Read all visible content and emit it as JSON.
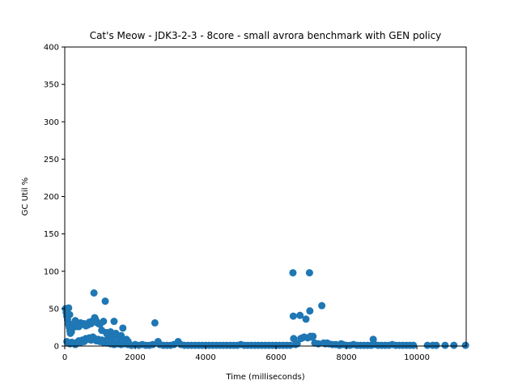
{
  "chart_data": {
    "type": "scatter",
    "title": "Cat's Meow - JDK3-2-3 - 8core -  small avrora benchmark with GEN policy",
    "xlabel": "Time (milliseconds)",
    "ylabel": "GC Util %",
    "xlim": [
      0,
      11400
    ],
    "ylim": [
      0,
      400
    ],
    "xticks": [
      0,
      2000,
      4000,
      6000,
      8000,
      10000
    ],
    "yticks": [
      0,
      50,
      100,
      150,
      200,
      250,
      300,
      350,
      400
    ],
    "grid": false,
    "marker_color": "#1f77b4",
    "series": [
      {
        "points": [
          [
            20,
            50
          ],
          [
            40,
            45
          ],
          [
            60,
            40
          ],
          [
            80,
            35
          ],
          [
            100,
            30
          ],
          [
            110,
            51
          ],
          [
            120,
            28
          ],
          [
            130,
            25
          ],
          [
            140,
            42
          ],
          [
            150,
            20
          ],
          [
            160,
            17
          ],
          [
            170,
            22
          ],
          [
            190,
            19
          ],
          [
            210,
            24
          ],
          [
            230,
            27
          ],
          [
            260,
            30
          ],
          [
            300,
            34
          ],
          [
            320,
            26
          ],
          [
            350,
            28
          ],
          [
            400,
            26
          ],
          [
            450,
            31
          ],
          [
            500,
            29
          ],
          [
            550,
            30
          ],
          [
            600,
            27
          ],
          [
            650,
            28
          ],
          [
            700,
            32
          ],
          [
            750,
            30
          ],
          [
            800,
            34
          ],
          [
            830,
            71
          ],
          [
            850,
            38
          ],
          [
            870,
            36
          ],
          [
            900,
            33
          ],
          [
            930,
            31
          ],
          [
            960,
            30
          ],
          [
            1000,
            29
          ],
          [
            1050,
            21
          ],
          [
            1100,
            33
          ],
          [
            1150,
            60
          ],
          [
            1180,
            18
          ],
          [
            1200,
            16
          ],
          [
            1250,
            14
          ],
          [
            1300,
            19
          ],
          [
            1350,
            12
          ],
          [
            1400,
            33
          ],
          [
            1450,
            17
          ],
          [
            1500,
            13
          ],
          [
            1550,
            11
          ],
          [
            1600,
            14
          ],
          [
            1650,
            24
          ],
          [
            1700,
            8
          ],
          [
            1750,
            9
          ],
          [
            1800,
            6
          ],
          [
            60,
            6
          ],
          [
            100,
            4
          ],
          [
            150,
            3
          ],
          [
            200,
            5
          ],
          [
            250,
            4
          ],
          [
            300,
            2
          ],
          [
            350,
            5
          ],
          [
            400,
            7
          ],
          [
            450,
            5
          ],
          [
            500,
            8
          ],
          [
            550,
            6
          ],
          [
            600,
            10
          ],
          [
            650,
            9
          ],
          [
            700,
            11
          ],
          [
            750,
            8
          ],
          [
            800,
            12
          ],
          [
            850,
            10
          ],
          [
            900,
            7
          ],
          [
            950,
            9
          ],
          [
            1000,
            6
          ],
          [
            1050,
            8
          ],
          [
            1100,
            5
          ],
          [
            1150,
            7
          ],
          [
            1200,
            4
          ],
          [
            1250,
            6
          ],
          [
            1300,
            3
          ],
          [
            1350,
            5
          ],
          [
            1400,
            2
          ],
          [
            1450,
            4
          ],
          [
            1500,
            3
          ],
          [
            1600,
            2
          ],
          [
            1700,
            3
          ],
          [
            1800,
            2
          ],
          [
            1900,
            1
          ],
          [
            2000,
            2
          ],
          [
            2100,
            1
          ],
          [
            2200,
            2
          ],
          [
            2300,
            1
          ],
          [
            2400,
            1
          ],
          [
            2500,
            2
          ],
          [
            2560,
            31
          ],
          [
            2650,
            6
          ],
          [
            2700,
            2
          ],
          [
            2800,
            1
          ],
          [
            2900,
            1
          ],
          [
            3000,
            1
          ],
          [
            3100,
            2
          ],
          [
            3220,
            6
          ],
          [
            3300,
            2
          ],
          [
            3400,
            1
          ],
          [
            3500,
            1
          ],
          [
            3600,
            1
          ],
          [
            3700,
            1
          ],
          [
            3800,
            1
          ],
          [
            3900,
            1
          ],
          [
            4000,
            1
          ],
          [
            4100,
            1
          ],
          [
            4200,
            1
          ],
          [
            4300,
            1
          ],
          [
            4400,
            1
          ],
          [
            4500,
            1
          ],
          [
            4600,
            1
          ],
          [
            4700,
            1
          ],
          [
            4800,
            1
          ],
          [
            4900,
            1
          ],
          [
            5000,
            2
          ],
          [
            5100,
            1
          ],
          [
            5200,
            1
          ],
          [
            5300,
            1
          ],
          [
            5400,
            1
          ],
          [
            5500,
            1
          ],
          [
            5600,
            1
          ],
          [
            5700,
            1
          ],
          [
            5800,
            1
          ],
          [
            5900,
            1
          ],
          [
            6000,
            1
          ],
          [
            6100,
            1
          ],
          [
            6200,
            1
          ],
          [
            6300,
            1
          ],
          [
            6400,
            1
          ],
          [
            6480,
            98
          ],
          [
            6490,
            40
          ],
          [
            6500,
            10
          ],
          [
            6550,
            2
          ],
          [
            6600,
            3
          ],
          [
            6680,
            41
          ],
          [
            6700,
            10
          ],
          [
            6750,
            11
          ],
          [
            6800,
            12
          ],
          [
            6850,
            36
          ],
          [
            6900,
            11
          ],
          [
            6950,
            98
          ],
          [
            6960,
            47
          ],
          [
            6980,
            13
          ],
          [
            7000,
            12
          ],
          [
            7050,
            13
          ],
          [
            7100,
            4
          ],
          [
            7200,
            3
          ],
          [
            7300,
            54
          ],
          [
            7350,
            4
          ],
          [
            7400,
            3
          ],
          [
            7450,
            4
          ],
          [
            7500,
            3
          ],
          [
            7600,
            2
          ],
          [
            7700,
            2
          ],
          [
            7800,
            1
          ],
          [
            7850,
            3
          ],
          [
            7900,
            2
          ],
          [
            8000,
            1
          ],
          [
            8100,
            1
          ],
          [
            8200,
            2
          ],
          [
            8300,
            1
          ],
          [
            8400,
            1
          ],
          [
            8500,
            1
          ],
          [
            8600,
            1
          ],
          [
            8700,
            1
          ],
          [
            8760,
            9
          ],
          [
            8800,
            2
          ],
          [
            8900,
            1
          ],
          [
            9000,
            1
          ],
          [
            9100,
            1
          ],
          [
            9200,
            1
          ],
          [
            9300,
            2
          ],
          [
            9400,
            1
          ],
          [
            9500,
            1
          ],
          [
            9600,
            1
          ],
          [
            9700,
            1
          ],
          [
            9800,
            1
          ],
          [
            9900,
            1
          ],
          [
            10300,
            1
          ],
          [
            10450,
            1
          ],
          [
            10550,
            1
          ],
          [
            10800,
            1
          ],
          [
            11050,
            1
          ],
          [
            11380,
            1
          ]
        ]
      }
    ]
  }
}
